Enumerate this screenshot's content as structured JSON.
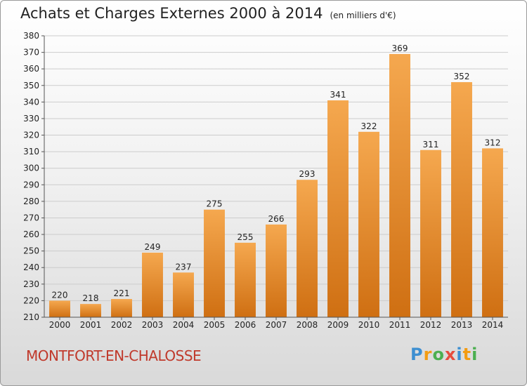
{
  "header": {
    "title": "Achats et Charges Externes 2000 à 2014",
    "unit": "(en milliers d'€)"
  },
  "footer": {
    "commune": "MONTFORT-EN-CHALOSSE",
    "logo": [
      "P",
      "r",
      "o",
      "x",
      "i",
      "t",
      "i"
    ],
    "logo_colors": [
      "#3d8fd1",
      "#f39c12",
      "#4caf50",
      "#e74c3c",
      "#3d8fd1",
      "#f39c12",
      "#4caf50"
    ]
  },
  "colors": {
    "bar_top": "#f5a84f",
    "bar_bottom": "#cf6f12",
    "grid": "#cccccc",
    "commune": "#c0392b"
  },
  "chart_data": {
    "type": "bar",
    "title": "Achats et Charges Externes 2000 à 2014",
    "subtitle": "(en milliers d'€)",
    "categories": [
      "2000",
      "2001",
      "2002",
      "2003",
      "2004",
      "2005",
      "2006",
      "2007",
      "2008",
      "2009",
      "2010",
      "2011",
      "2012",
      "2013",
      "2014"
    ],
    "values": [
      220,
      218,
      221,
      249,
      237,
      275,
      255,
      266,
      293,
      341,
      322,
      369,
      311,
      352,
      312
    ],
    "ylim": [
      210,
      380
    ],
    "ytick_step": 10,
    "grid": true,
    "data_labels": true
  }
}
